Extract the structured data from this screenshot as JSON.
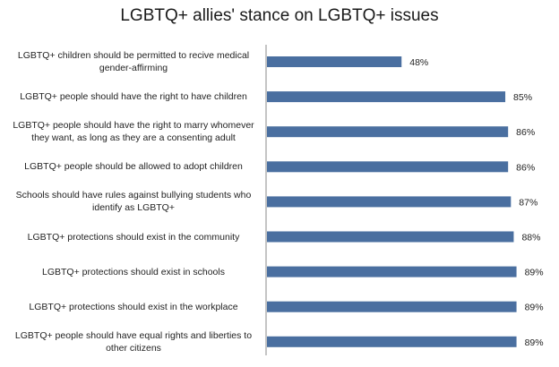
{
  "chart_data": {
    "type": "bar",
    "orientation": "horizontal",
    "title": "LGBTQ+ allies' stance on LGBTQ+ issues",
    "xlabel": "",
    "ylabel": "",
    "xlim": [
      0,
      100
    ],
    "grid": false,
    "color": "#4a6fa0",
    "categories": [
      "LGBTQ+ children should be permitted to recive medical gender-affirming",
      "LGBTQ+ people should have the right to have children",
      "LGBTQ+ people should have the right to marry whomever they want, as long as they are a consenting adult",
      "LGBTQ+ people should be allowed to adopt children",
      "Schools should have rules against bullying students who identify as LGBTQ+",
      "LGBTQ+ protections should exist in the community",
      "LGBTQ+ protections should exist in schools",
      "LGBTQ+ protections should exist in the workplace",
      "LGBTQ+ people should have equal rights and liberties to other citizens"
    ],
    "values": [
      48,
      85,
      86,
      86,
      87,
      88,
      89,
      89,
      89
    ],
    "value_labels": [
      "48%",
      "85%",
      "86%",
      "86%",
      "87%",
      "88%",
      "89%",
      "89%",
      "89%"
    ]
  }
}
